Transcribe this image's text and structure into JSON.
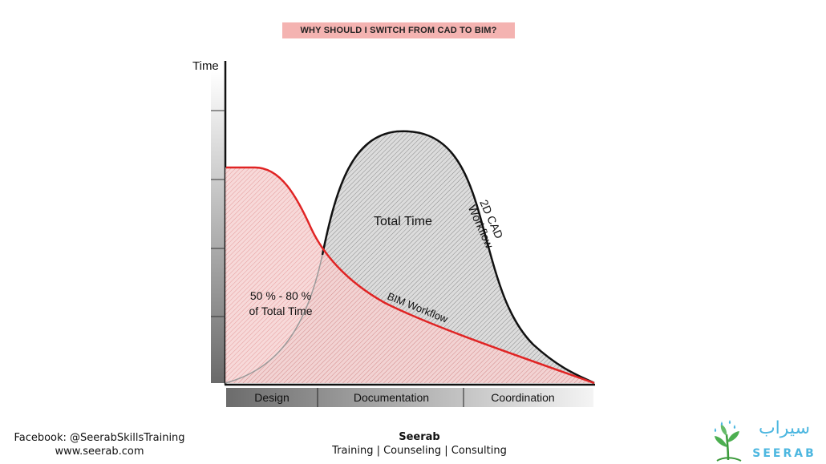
{
  "header": {
    "title": "WHY SHOULD I SWITCH FROM CAD TO BIM?"
  },
  "diagram": {
    "y_axis_label": "Time",
    "phases": [
      "Design",
      "Documentation",
      "Coordination"
    ],
    "labels": {
      "total_time": "Total Time",
      "cad_workflow_line1": "2D CAD",
      "cad_workflow_line2": "Workflow",
      "bim_workflow": "BIM Workflow",
      "share_line1": "50 % - 80 %",
      "share_line2": "of Total Time"
    },
    "colors": {
      "bim_curve": "#e02424",
      "bim_fill": "#f4c8c8",
      "cad_curve": "#111111",
      "cad_fill": "#d0d0d0"
    }
  },
  "footer": {
    "facebook": "Facebook: @SeerabSkillsTraining",
    "website": "www.seerab.com",
    "brand": "Seerab",
    "tagline": "Training | Counseling | Consulting"
  },
  "logo": {
    "arabic": "سيراب",
    "latin": "SEERAB"
  }
}
